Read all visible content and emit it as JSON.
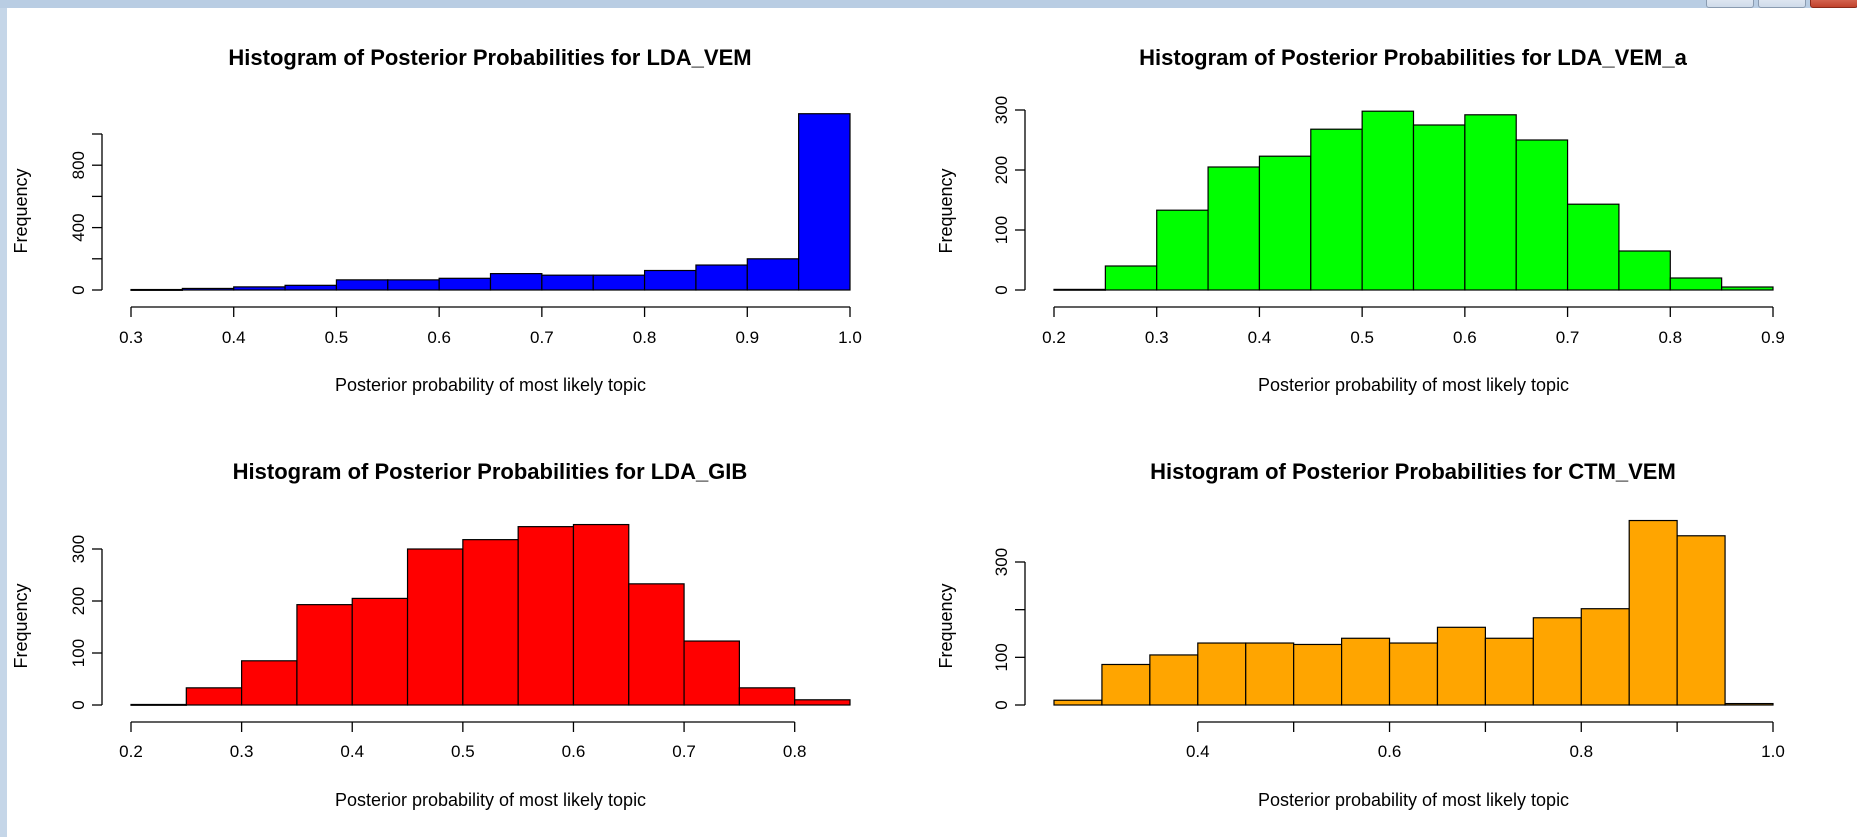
{
  "chart_data": [
    {
      "type": "bar",
      "title": "Histogram of Posterior Probabilities for LDA_VEM",
      "xlabel": "Posterior probability of most likely topic",
      "ylabel": "Frequency",
      "color": "#0000ff",
      "bin_width": 0.05,
      "bin_starts": [
        0.3,
        0.35,
        0.4,
        0.45,
        0.5,
        0.55,
        0.6,
        0.65,
        0.7,
        0.75,
        0.8,
        0.85,
        0.9,
        0.95
      ],
      "values": [
        3,
        10,
        20,
        30,
        65,
        65,
        75,
        105,
        95,
        95,
        125,
        160,
        200,
        1130
      ],
      "xlim": [
        0.3,
        1.0
      ],
      "xticks": [
        0.3,
        0.4,
        0.5,
        0.6,
        0.7,
        0.8,
        0.9,
        1.0
      ],
      "xtick_labels": [
        "0.3",
        "0.4",
        "0.5",
        "0.6",
        "0.7",
        "0.8",
        "0.9",
        "1.0"
      ],
      "ylim": [
        0,
        1000
      ],
      "yticks": [
        0,
        400,
        800
      ],
      "ytick_labels": [
        "0",
        "400",
        "800"
      ],
      "yticks_minor": [
        200,
        600,
        1000
      ]
    },
    {
      "type": "bar",
      "title": "Histogram of Posterior Probabilities for LDA_VEM_a",
      "xlabel": "Posterior probability of most likely topic",
      "ylabel": "Frequency",
      "color": "#00ff00",
      "bin_width": 0.05,
      "bin_starts": [
        0.2,
        0.25,
        0.3,
        0.35,
        0.4,
        0.45,
        0.5,
        0.55,
        0.6,
        0.65,
        0.7,
        0.75,
        0.8,
        0.85
      ],
      "values": [
        1,
        40,
        133,
        205,
        223,
        268,
        298,
        275,
        292,
        250,
        143,
        65,
        20,
        5
      ],
      "xlim": [
        0.2,
        0.9
      ],
      "xticks": [
        0.2,
        0.3,
        0.4,
        0.5,
        0.6,
        0.7,
        0.8,
        0.9
      ],
      "xtick_labels": [
        "0.2",
        "0.3",
        "0.4",
        "0.5",
        "0.6",
        "0.7",
        "0.8",
        "0.9"
      ],
      "ylim": [
        0,
        300
      ],
      "yticks": [
        0,
        100,
        200,
        300
      ],
      "ytick_labels": [
        "0",
        "100",
        "200",
        "300"
      ],
      "yticks_minor": []
    },
    {
      "type": "bar",
      "title": "Histogram of Posterior Probabilities for LDA_GIB",
      "xlabel": "Posterior probability of most likely topic",
      "ylabel": "Frequency",
      "color": "#ff0000",
      "bin_width": 0.05,
      "bin_starts": [
        0.2,
        0.25,
        0.3,
        0.35,
        0.4,
        0.45,
        0.5,
        0.55,
        0.6,
        0.65,
        0.7,
        0.75,
        0.8
      ],
      "values": [
        1,
        33,
        85,
        193,
        205,
        300,
        318,
        343,
        347,
        233,
        123,
        33,
        10
      ],
      "xlim": [
        0.2,
        0.85
      ],
      "xticks": [
        0.2,
        0.3,
        0.4,
        0.5,
        0.6,
        0.7,
        0.8
      ],
      "xtick_labels": [
        "0.2",
        "0.3",
        "0.4",
        "0.5",
        "0.6",
        "0.7",
        "0.8"
      ],
      "ylim": [
        0,
        350
      ],
      "yticks": [
        0,
        100,
        200,
        300
      ],
      "ytick_labels": [
        "0",
        "100",
        "200",
        "300"
      ],
      "yticks_minor": []
    },
    {
      "type": "bar",
      "title": "Histogram of Posterior Probabilities for CTM_VEM",
      "xlabel": "Posterior probability of most likely topic",
      "ylabel": "Frequency",
      "color": "#ffa500",
      "bin_width": 0.05,
      "bin_starts": [
        0.25,
        0.3,
        0.35,
        0.4,
        0.45,
        0.5,
        0.55,
        0.6,
        0.65,
        0.7,
        0.75,
        0.8,
        0.85,
        0.9,
        0.95
      ],
      "values": [
        10,
        85,
        105,
        130,
        130,
        127,
        140,
        130,
        163,
        140,
        183,
        202,
        387,
        355,
        3
      ],
      "xlim": [
        0.25,
        1.0
      ],
      "xticks": [
        0.4,
        0.6,
        0.8,
        1.0
      ],
      "xtick_labels": [
        "0.4",
        "0.6",
        "0.8",
        "1.0"
      ],
      "xticks_minor": [
        0.5,
        0.7,
        0.9
      ],
      "ylim": [
        0,
        300
      ],
      "yticks": [
        0,
        100,
        300
      ],
      "ytick_labels": [
        "0",
        "100",
        "300"
      ],
      "yticks_minor": [
        200
      ]
    }
  ]
}
